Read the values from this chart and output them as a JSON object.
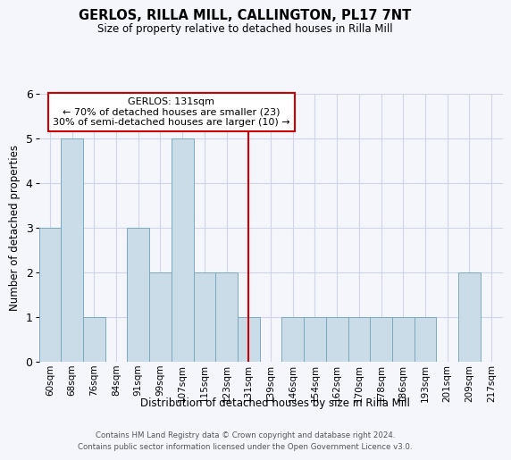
{
  "title": "GERLOS, RILLA MILL, CALLINGTON, PL17 7NT",
  "subtitle": "Size of property relative to detached houses in Rilla Mill",
  "xlabel": "Distribution of detached houses by size in Rilla Mill",
  "ylabel": "Number of detached properties",
  "bin_labels": [
    "60sqm",
    "68sqm",
    "76sqm",
    "84sqm",
    "91sqm",
    "99sqm",
    "107sqm",
    "115sqm",
    "123sqm",
    "131sqm",
    "139sqm",
    "146sqm",
    "154sqm",
    "162sqm",
    "170sqm",
    "178sqm",
    "186sqm",
    "193sqm",
    "201sqm",
    "209sqm",
    "217sqm"
  ],
  "bar_heights": [
    3,
    5,
    1,
    0,
    3,
    2,
    5,
    2,
    2,
    1,
    0,
    1,
    1,
    1,
    1,
    1,
    1,
    1,
    0,
    2,
    0
  ],
  "bar_color": "#c9dce8",
  "bar_edge_color": "#7aaac0",
  "marker_index": 9,
  "marker_color": "#cc0000",
  "annotation_title": "GERLOS: 131sqm",
  "annotation_line1": "← 70% of detached houses are smaller (23)",
  "annotation_line2": "30% of semi-detached houses are larger (10) →",
  "ylim_max": 6,
  "yticks": [
    0,
    1,
    2,
    3,
    4,
    5,
    6
  ],
  "footer_line1": "Contains HM Land Registry data © Crown copyright and database right 2024.",
  "footer_line2": "Contains public sector information licensed under the Open Government Licence v3.0.",
  "bg_color": "#f4f6fc",
  "grid_color": "#d0d4e8"
}
